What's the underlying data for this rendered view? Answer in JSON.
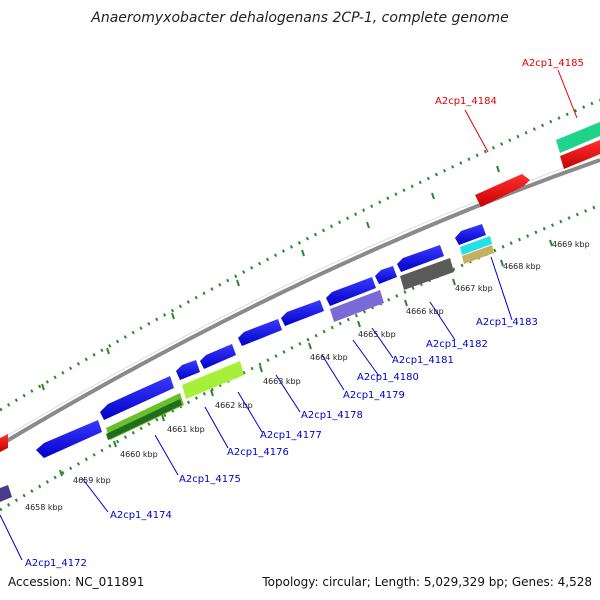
{
  "title": "Anaeromyxobacter dehalogenans 2CP-1, complete genome",
  "footer": {
    "accession": "Accession: NC_011891",
    "summary": "Topology: circular; Length: 5,029,329 bp; Genes: 4,528"
  },
  "ruler_ticks": [
    "4658 kbp",
    "4659 kbp",
    "4660 kbp",
    "4661 kbp",
    "4662 kbp",
    "4663 kbp",
    "4664 kbp",
    "4665 kbp",
    "4666 kbp",
    "4667 kbp",
    "4668 kbp",
    "4669 kbp"
  ],
  "gene_labels": [
    {
      "text": "A2cp1_4185",
      "color": "#e00000"
    },
    {
      "text": "A2cp1_4184",
      "color": "#e00000"
    },
    {
      "text": "A2cp1_4183",
      "color": "#0000cc"
    },
    {
      "text": "A2cp1_4182",
      "color": "#0000cc"
    },
    {
      "text": "A2cp1_4181",
      "color": "#0000cc"
    },
    {
      "text": "A2cp1_4180",
      "color": "#0000cc"
    },
    {
      "text": "A2cp1_4179",
      "color": "#0000cc"
    },
    {
      "text": "A2cp1_4178",
      "color": "#0000cc"
    },
    {
      "text": "A2cp1_4177",
      "color": "#0000cc"
    },
    {
      "text": "A2cp1_4176",
      "color": "#0000cc"
    },
    {
      "text": "A2cp1_4175",
      "color": "#0000cc"
    },
    {
      "text": "A2cp1_4174",
      "color": "#0000cc"
    },
    {
      "text": "A2cp1_4172",
      "color": "#0000cc"
    }
  ],
  "colors": {
    "forward_cds": "#e60000",
    "reverse_cds": "#1010e0",
    "backbone": "#8a8a8a",
    "ruler": "#2a8a2a"
  }
}
